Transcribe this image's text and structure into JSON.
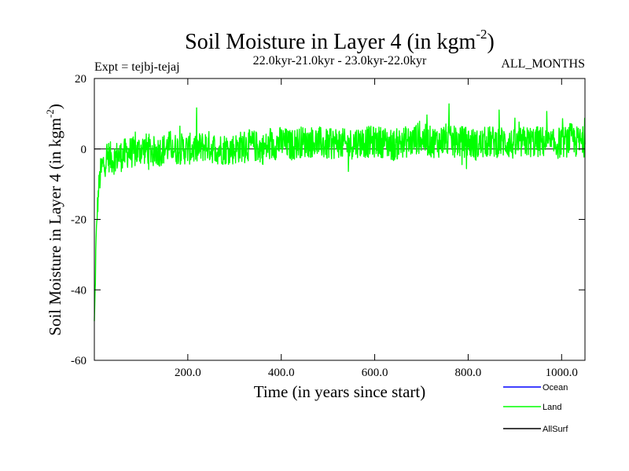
{
  "chart_data": {
    "type": "line",
    "title_main": "Soil Moisture in Layer 4 (in kgm",
    "title_sup": "-2",
    "title_close": ")",
    "expt": "Expt = tejbj-tejaj",
    "period": "22.0kyr-21.0kyr - 23.0kyr-22.0kyr",
    "months": "ALL_MONTHS",
    "xlabel": "Time (in years since start)",
    "ylabel_main": "Soil Moisture in Layer 4 (in kgm",
    "ylabel_sup": "-2",
    "ylabel_close": ")",
    "xlim": [
      0,
      1050
    ],
    "ylim": [
      -60,
      20
    ],
    "xticks": [
      200,
      400,
      600,
      800,
      1000
    ],
    "xtick_labels": [
      "200.0",
      "400.0",
      "600.0",
      "800.0",
      "1000.0"
    ],
    "yticks": [
      -60,
      -40,
      -20,
      0,
      20
    ],
    "ytick_labels": [
      "-60",
      "-40",
      "-20",
      "0",
      "20"
    ],
    "zero_line": 0,
    "series": [
      {
        "name": "Land",
        "color": "#00ff00",
        "x": [
          0,
          1,
          2,
          3,
          4,
          5,
          6,
          8,
          10,
          12,
          15,
          20,
          25,
          30,
          40,
          50,
          60,
          70,
          80,
          90,
          100,
          115,
          130,
          150,
          165,
          170,
          180,
          200,
          220,
          240,
          260,
          280,
          300,
          320,
          340,
          360,
          380,
          400,
          420,
          440,
          455,
          460,
          470,
          480,
          500,
          520,
          540,
          560,
          580,
          600,
          620,
          640,
          660,
          680,
          690,
          700,
          720,
          740,
          750,
          760,
          780,
          800,
          820,
          840,
          860,
          880,
          900,
          920,
          940,
          960,
          980,
          1000,
          1010,
          1020,
          1030,
          1040,
          1050
        ],
        "values": [
          -50,
          -45,
          -38,
          -30,
          -26,
          -22,
          -18,
          -14,
          -10,
          -8,
          -6,
          -4,
          -3,
          -2,
          -3,
          -2,
          -2,
          -1,
          -1,
          -1,
          0,
          0,
          -1,
          0,
          1,
          0,
          0,
          0,
          0,
          1,
          0,
          0,
          0,
          1,
          1,
          0,
          1,
          2,
          1,
          2,
          2,
          2,
          2,
          2,
          1,
          2,
          1,
          2,
          2,
          2,
          2,
          1,
          2,
          2,
          3,
          3,
          2,
          2,
          3,
          2,
          2,
          2,
          1,
          2,
          2,
          2,
          1,
          2,
          2,
          2,
          1,
          2,
          2,
          3,
          2,
          2,
          2
        ],
        "noise_amplitude": 4.5
      }
    ],
    "legend": [
      {
        "label": "Ocean",
        "color": "#0000ff"
      },
      {
        "label": "Land",
        "color": "#00ff00"
      },
      {
        "label": "AllSurf",
        "color": "#000000"
      }
    ],
    "legend_position": "bottom-right"
  }
}
